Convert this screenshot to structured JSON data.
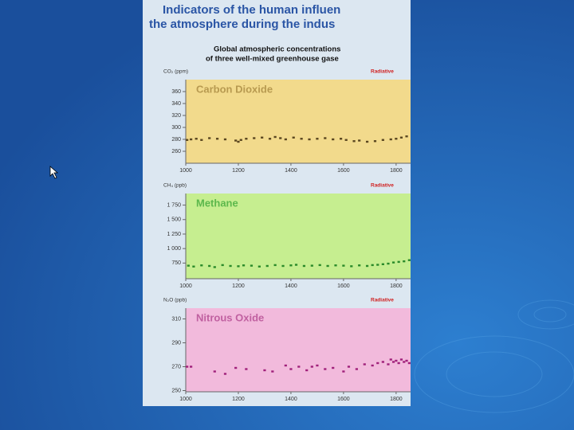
{
  "header": {
    "title_line1": "Indicators of the human influen",
    "title_line2": "the atmosphere during the indus",
    "subtitle_line1": "Global atmospheric concentrations",
    "subtitle_line2": "of three well-mixed greenhouse gase"
  },
  "chart_data": [
    {
      "type": "scatter",
      "title": "Carbon Dioxide",
      "y_label": "CO₂ (ppm)",
      "right_label": "Radiative",
      "color": "#5a4620",
      "background": "#f2da8c",
      "title_color": "#b89a50",
      "xlim": [
        1000,
        1855
      ],
      "xticks": [
        1000,
        1200,
        1400,
        1600,
        1800
      ],
      "ylim": [
        240,
        380
      ],
      "yticks": [
        260,
        280,
        300,
        320,
        340,
        360
      ],
      "x": [
        1005,
        1020,
        1040,
        1060,
        1090,
        1120,
        1150,
        1190,
        1200,
        1210,
        1230,
        1260,
        1290,
        1320,
        1340,
        1360,
        1380,
        1410,
        1440,
        1470,
        1500,
        1530,
        1560,
        1590,
        1610,
        1640,
        1660,
        1690,
        1720,
        1750,
        1780,
        1800,
        1820,
        1840
      ],
      "values": [
        279,
        280,
        281,
        279,
        282,
        281,
        280,
        278,
        276,
        279,
        281,
        282,
        283,
        281,
        284,
        282,
        280,
        283,
        281,
        280,
        281,
        282,
        280,
        281,
        279,
        277,
        278,
        276,
        277,
        279,
        280,
        281,
        283,
        285
      ]
    },
    {
      "type": "scatter",
      "title": "Methane",
      "y_label": "CH₄ (ppb)",
      "right_label": "Radiative",
      "color": "#2a8a2a",
      "background": "#c6ee90",
      "title_color": "#5cb84c",
      "xlim": [
        1000,
        1855
      ],
      "xticks": [
        1000,
        1200,
        1400,
        1600,
        1800
      ],
      "ylim": [
        480,
        1950
      ],
      "yticks": [
        {
          "value": 750,
          "label": "750"
        },
        {
          "value": 1000,
          "label": "1 000"
        },
        {
          "value": 1250,
          "label": "1 250"
        },
        {
          "value": 1500,
          "label": "1 500"
        },
        {
          "value": 1750,
          "label": "1 750"
        }
      ],
      "x": [
        1010,
        1030,
        1060,
        1090,
        1110,
        1140,
        1170,
        1200,
        1220,
        1250,
        1280,
        1310,
        1340,
        1370,
        1400,
        1420,
        1450,
        1480,
        1510,
        1540,
        1570,
        1600,
        1630,
        1660,
        1690,
        1710,
        1730,
        1750,
        1770,
        1790,
        1810,
        1830,
        1850
      ],
      "values": [
        705,
        690,
        710,
        700,
        680,
        715,
        700,
        695,
        710,
        705,
        690,
        700,
        715,
        700,
        710,
        720,
        700,
        705,
        715,
        700,
        710,
        705,
        695,
        710,
        700,
        715,
        720,
        730,
        740,
        760,
        770,
        780,
        800
      ]
    },
    {
      "type": "scatter",
      "title": "Nitrous Oxide",
      "y_label": "N₂O (ppb)",
      "right_label": "Radiative",
      "color": "#a0207a",
      "background": "#f2badc",
      "title_color": "#c060a0",
      "xlim": [
        1000,
        1855
      ],
      "xticks": [
        1000,
        1200,
        1400,
        1600,
        1800
      ],
      "ylim": [
        249,
        319
      ],
      "yticks": [
        250,
        270,
        290,
        310
      ],
      "x": [
        1005,
        1020,
        1110,
        1150,
        1190,
        1230,
        1300,
        1330,
        1380,
        1400,
        1430,
        1460,
        1480,
        1500,
        1530,
        1560,
        1600,
        1620,
        1650,
        1680,
        1710,
        1730,
        1750,
        1770,
        1780,
        1790,
        1800,
        1810,
        1820,
        1830,
        1840,
        1850
      ],
      "values": [
        270,
        270,
        266,
        264,
        269,
        268,
        267,
        266,
        271,
        268,
        270,
        267,
        270,
        271,
        268,
        269,
        266,
        270,
        268,
        272,
        271,
        273,
        274,
        272,
        276,
        274,
        275,
        273,
        276,
        274,
        275,
        273
      ]
    }
  ]
}
